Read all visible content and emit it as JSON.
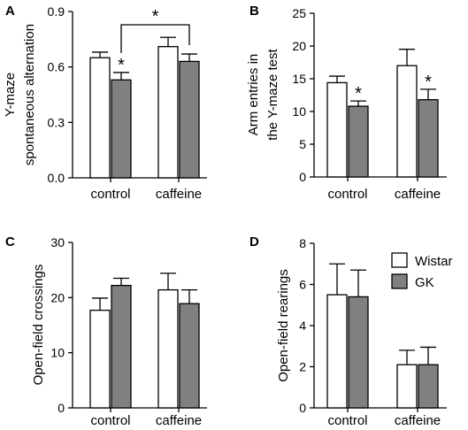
{
  "colors": {
    "wistar": "#ffffff",
    "gk": "#808080",
    "stroke": "#000000"
  },
  "legend": {
    "items": [
      {
        "label": "Wistar",
        "color": "#ffffff"
      },
      {
        "label": "GK",
        "color": "#808080"
      }
    ]
  },
  "chart_data": [
    {
      "panel": "A",
      "type": "bar",
      "categories": [
        "control",
        "caffeine"
      ],
      "ylabel": [
        "Y-maze",
        "spontaneous alternation"
      ],
      "ylim": [
        0,
        0.9
      ],
      "yticks": [
        0.0,
        0.3,
        0.6,
        0.9
      ],
      "ytick_labels": [
        "0.0",
        "0.3",
        "0.6",
        "0.9"
      ],
      "series": [
        {
          "name": "Wistar",
          "values": [
            0.65,
            0.71
          ],
          "errors": [
            0.03,
            0.05
          ]
        },
        {
          "name": "GK",
          "values": [
            0.53,
            0.63
          ],
          "errors": [
            0.04,
            0.04
          ]
        }
      ],
      "markers": [
        {
          "category": 0,
          "series": 1,
          "text": "*"
        }
      ],
      "brackets": [
        {
          "from": [
            0,
            1
          ],
          "to": [
            1,
            1
          ],
          "text": "*"
        }
      ]
    },
    {
      "panel": "B",
      "type": "bar",
      "categories": [
        "control",
        "caffeine"
      ],
      "ylabel": [
        "Arm entries in",
        "the Y-maze test"
      ],
      "ylim": [
        0,
        25
      ],
      "yticks": [
        0,
        5,
        10,
        15,
        20,
        25
      ],
      "ytick_labels": [
        "0",
        "5",
        "10",
        "15",
        "20",
        "25"
      ],
      "series": [
        {
          "name": "Wistar",
          "values": [
            14.4,
            17.0
          ],
          "errors": [
            1.0,
            2.5
          ]
        },
        {
          "name": "GK",
          "values": [
            10.8,
            11.8
          ],
          "errors": [
            0.8,
            1.6
          ]
        }
      ],
      "markers": [
        {
          "category": 0,
          "series": 1,
          "text": "*"
        },
        {
          "category": 1,
          "series": 1,
          "text": "*"
        }
      ],
      "brackets": []
    },
    {
      "panel": "C",
      "type": "bar",
      "categories": [
        "control",
        "caffeine"
      ],
      "ylabel": [
        "Open-field crossings"
      ],
      "ylim": [
        0,
        30
      ],
      "yticks": [
        0,
        10,
        20,
        30
      ],
      "ytick_labels": [
        "0",
        "10",
        "20",
        "30"
      ],
      "series": [
        {
          "name": "Wistar",
          "values": [
            17.7,
            21.4
          ],
          "errors": [
            2.2,
            3.0
          ]
        },
        {
          "name": "GK",
          "values": [
            22.2,
            18.9
          ],
          "errors": [
            1.3,
            2.5
          ]
        }
      ],
      "markers": [],
      "brackets": []
    },
    {
      "panel": "D",
      "type": "bar",
      "categories": [
        "control",
        "caffeine"
      ],
      "ylabel": [
        "Open-field rearings"
      ],
      "ylim": [
        0,
        8
      ],
      "yticks": [
        0,
        2,
        4,
        6,
        8
      ],
      "ytick_labels": [
        "0",
        "2",
        "4",
        "6",
        "8"
      ],
      "series": [
        {
          "name": "Wistar",
          "values": [
            5.5,
            2.1
          ],
          "errors": [
            1.5,
            0.7
          ]
        },
        {
          "name": "GK",
          "values": [
            5.4,
            2.1
          ],
          "errors": [
            1.3,
            0.85
          ]
        }
      ],
      "markers": [],
      "brackets": []
    }
  ]
}
